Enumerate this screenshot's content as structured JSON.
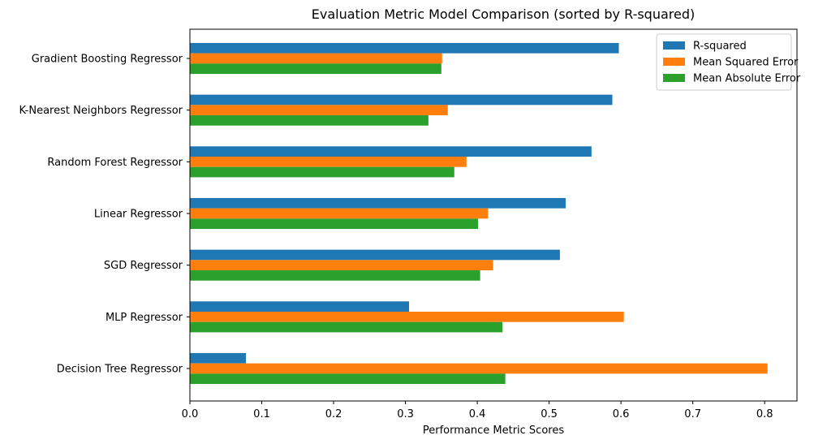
{
  "chart_data": {
    "type": "bar",
    "orientation": "horizontal",
    "title": "Evaluation Metric Model Comparison (sorted by R-squared)",
    "xlabel": "Performance Metric Scores",
    "ylabel": "",
    "xlim": [
      0,
      0.845
    ],
    "xticks": [
      0.0,
      0.1,
      0.2,
      0.3,
      0.4,
      0.5,
      0.6,
      0.7,
      0.8
    ],
    "xtick_labels": [
      "0.0",
      "0.1",
      "0.2",
      "0.3",
      "0.4",
      "0.5",
      "0.6",
      "0.7",
      "0.8"
    ],
    "categories": [
      "Gradient Boosting Regressor",
      "K-Nearest Neighbors Regressor",
      "Random Forest Regressor",
      "Linear Regressor",
      "SGD Regressor",
      "MLP Regressor",
      "Decision Tree Regressor"
    ],
    "series": [
      {
        "name": "R-squared",
        "color": "#1f77b4",
        "values": [
          0.597,
          0.588,
          0.559,
          0.523,
          0.515,
          0.305,
          0.078
        ]
      },
      {
        "name": "Mean Squared Error",
        "color": "#ff7f0e",
        "values": [
          0.351,
          0.359,
          0.385,
          0.415,
          0.422,
          0.604,
          0.804
        ]
      },
      {
        "name": "Mean Absolute Error",
        "color": "#2ca02c",
        "values": [
          0.35,
          0.332,
          0.368,
          0.401,
          0.404,
          0.435,
          0.439
        ]
      }
    ],
    "legend": "top-right",
    "grid": false
  }
}
